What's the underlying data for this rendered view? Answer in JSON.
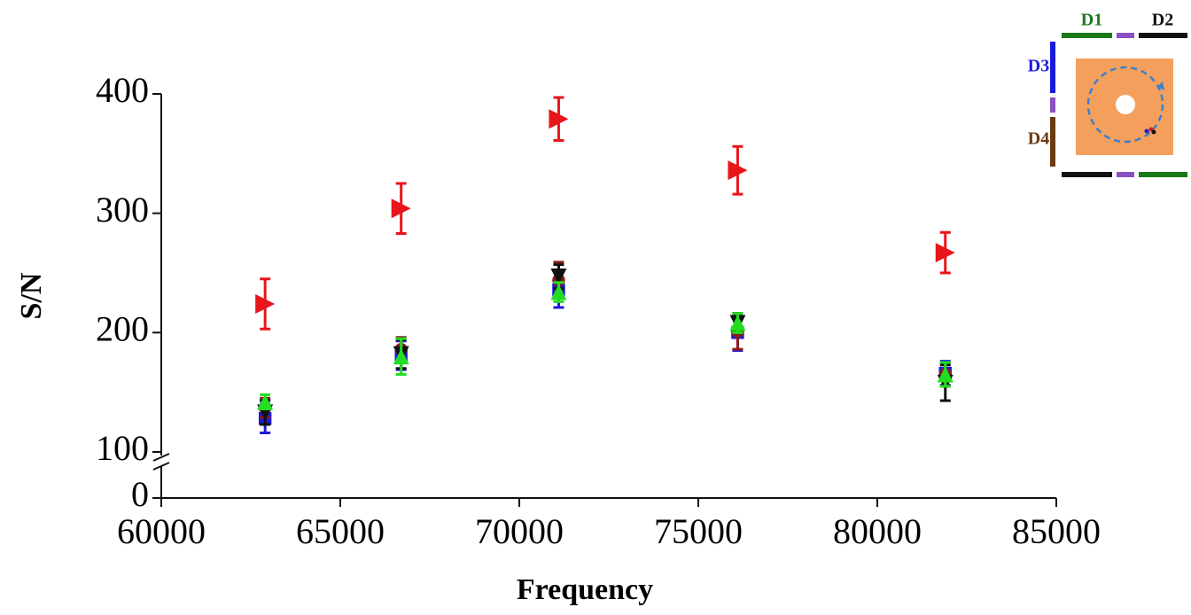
{
  "chart_data": {
    "type": "scatter",
    "xlabel": "Frequency",
    "ylabel": "S/N",
    "x": [
      62900,
      66700,
      71100,
      76100,
      81900
    ],
    "xlim": [
      60000,
      85000
    ],
    "xticks": [
      60000,
      65000,
      70000,
      75000,
      80000,
      85000
    ],
    "ylim": [
      0,
      400
    ],
    "yticks": [
      0,
      100,
      200,
      300,
      400
    ],
    "y_break": [
      25,
      100
    ],
    "series": [
      {
        "color": "#e8151b",
        "marker": "triangle-right",
        "values": [
          224,
          304,
          379,
          336,
          267
        ],
        "errors": [
          21,
          21,
          18,
          20,
          17
        ]
      },
      {
        "color": "#1a1adb",
        "marker": "square",
        "values": [
          128,
          181,
          236,
          200,
          166
        ],
        "errors": [
          12,
          12,
          15,
          15,
          10
        ]
      },
      {
        "color": "#8b1a1a",
        "marker": "circle",
        "values": [
          137,
          186,
          244,
          201,
          165
        ],
        "errors": [
          8,
          10,
          15,
          15,
          10
        ]
      },
      {
        "color": "#111111",
        "marker": "triangle-down",
        "values": [
          133,
          182,
          247,
          208,
          158
        ],
        "errors": [
          10,
          12,
          10,
          8,
          15
        ]
      },
      {
        "color": "#22dd22",
        "marker": "triangle-up",
        "values": [
          142,
          180,
          234,
          208,
          165
        ],
        "errors": [
          6,
          15,
          8,
          8,
          10
        ]
      }
    ]
  },
  "inset": {
    "labels": [
      "D1",
      "D2",
      "D3",
      "D4"
    ]
  }
}
